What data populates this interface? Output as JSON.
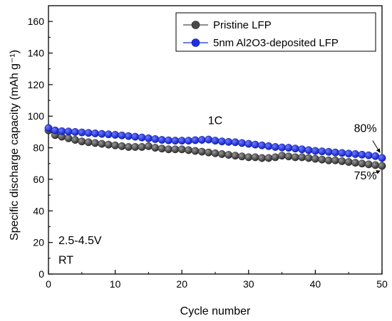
{
  "chart_data": {
    "type": "scatter",
    "xlabel": "Cycle number",
    "ylabel": "Specific discharge capacity (mAh g⁻¹)",
    "xlim": [
      0,
      50
    ],
    "ylim": [
      0,
      170
    ],
    "xticks": [
      0,
      10,
      20,
      30,
      40,
      50
    ],
    "yticks": [
      0,
      20,
      40,
      60,
      80,
      100,
      120,
      140,
      160
    ],
    "grid": false,
    "legend_position": "top-right",
    "series": [
      {
        "name": "Pristine LFP",
        "color": "#4a4a4a",
        "x": [
          0,
          1,
          2,
          3,
          4,
          5,
          6,
          7,
          8,
          9,
          10,
          11,
          12,
          13,
          14,
          15,
          16,
          17,
          18,
          19,
          20,
          21,
          22,
          23,
          24,
          25,
          26,
          27,
          28,
          29,
          30,
          31,
          32,
          33,
          34,
          35,
          36,
          37,
          38,
          39,
          40,
          41,
          42,
          43,
          44,
          45,
          46,
          47,
          48,
          49,
          50
        ],
        "y": [
          91,
          88,
          87,
          86,
          85,
          84,
          83.5,
          83,
          82.5,
          82,
          81.5,
          81,
          80.5,
          80.5,
          80.5,
          81,
          80,
          79.5,
          79,
          79,
          79,
          78.5,
          78,
          77.5,
          77,
          76.5,
          76,
          75.5,
          75,
          74.5,
          74,
          74,
          73.5,
          73.5,
          74,
          75,
          74.5,
          74,
          74,
          73.5,
          73,
          72.5,
          72,
          72,
          71.5,
          71,
          70.5,
          70,
          69.5,
          69,
          68.5
        ]
      },
      {
        "name": "5nm Al2O3-deposited LFP",
        "color": "#1f2fe6",
        "x": [
          0,
          1,
          2,
          3,
          4,
          5,
          6,
          7,
          8,
          9,
          10,
          11,
          12,
          13,
          14,
          15,
          16,
          17,
          18,
          19,
          20,
          21,
          22,
          23,
          24,
          25,
          26,
          27,
          28,
          29,
          30,
          31,
          32,
          33,
          34,
          35,
          36,
          37,
          38,
          39,
          40,
          41,
          42,
          43,
          44,
          45,
          46,
          47,
          48,
          49,
          50
        ],
        "y": [
          92.5,
          91,
          90.5,
          90.3,
          90,
          89.7,
          89.4,
          89.1,
          88.8,
          88.5,
          88.2,
          87.8,
          87.4,
          87,
          86.5,
          86,
          85.5,
          85,
          84.7,
          84.5,
          84.5,
          84.5,
          84.8,
          85,
          85.2,
          84.5,
          84,
          83.7,
          83.5,
          83,
          82.5,
          82,
          81.5,
          81,
          80.5,
          80.2,
          80,
          79.5,
          79,
          78.5,
          78,
          77.7,
          77.4,
          77,
          76.7,
          76.3,
          76,
          75.6,
          75.2,
          74.7,
          73.5
        ]
      }
    ],
    "annotations": [
      {
        "text": "1C",
        "x": 25,
        "y": 95
      },
      {
        "text": "80%",
        "x": 47.5,
        "y": 90
      },
      {
        "text": "75%",
        "x": 47.5,
        "y": 60
      },
      {
        "text": "2.5-4.5V",
        "x": 1.5,
        "y": 19
      },
      {
        "text": "RT",
        "x": 1.5,
        "y": 6.5
      }
    ]
  }
}
